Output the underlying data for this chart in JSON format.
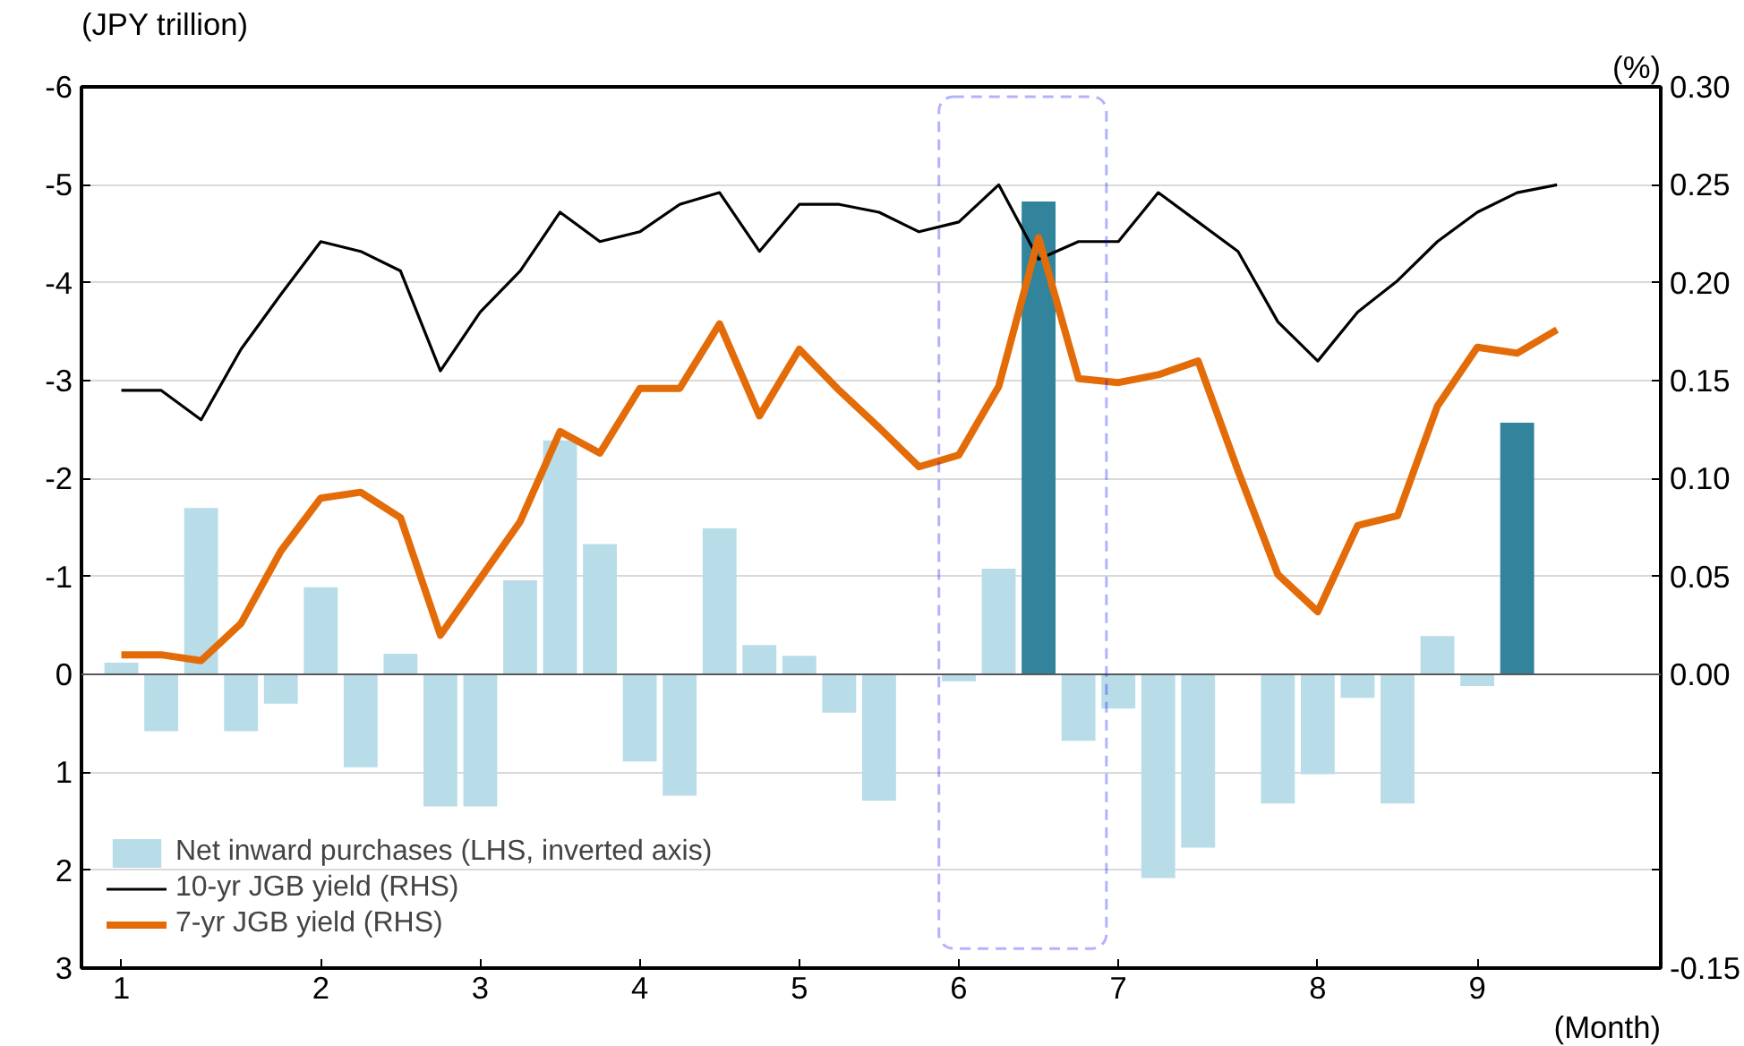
{
  "chart_data": {
    "type": "bar",
    "categories": [
      "1",
      null,
      null,
      null,
      null,
      "2",
      null,
      null,
      null,
      "3",
      null,
      null,
      null,
      "4",
      null,
      null,
      null,
      "5",
      null,
      null,
      null,
      "6",
      null,
      null,
      null,
      "7",
      null,
      null,
      null,
      null,
      "8",
      null,
      null,
      null,
      "9",
      null,
      null
    ],
    "xlabel": "(Month)",
    "ylabel": "(JPY trillion)",
    "y2label": "(%)",
    "ylim": [
      3,
      -6
    ],
    "yticks": [
      -6,
      -5,
      -4,
      -3,
      -2,
      -1,
      0,
      1,
      2,
      3
    ],
    "y2lim": [
      -0.15,
      0.3
    ],
    "y2ticks": [
      {
        "value": 0.3,
        "label": "0.30"
      },
      {
        "value": 0.25,
        "label": "0.25"
      },
      {
        "value": 0.2,
        "label": "0.20"
      },
      {
        "value": 0.15,
        "label": "0.15"
      },
      {
        "value": 0.1,
        "label": "0.10"
      },
      {
        "value": 0.05,
        "label": "0.05"
      },
      {
        "value": 0,
        "label": "0.00"
      },
      {
        "value": -0.05,
        "label": null
      },
      {
        "value": -0.1,
        "label": null
      },
      {
        "value": -0.15,
        "label": "-0.15"
      }
    ],
    "grid": "y",
    "legend": "bottom left",
    "series": [
      {
        "name": "Net inward purchases (LHS, inverted axis)",
        "color": "#b8dde8",
        "colors": [
          null,
          null,
          null,
          null,
          null,
          null,
          null,
          null,
          null,
          null,
          null,
          null,
          null,
          null,
          null,
          null,
          null,
          null,
          null,
          null,
          null,
          null,
          null,
          "#31849b",
          null,
          null,
          null,
          null,
          null,
          null,
          null,
          null,
          null,
          null,
          null,
          "#31849b",
          null
        ],
        "values": [
          -0.12,
          0.58,
          -1.7,
          0.58,
          0.3,
          -0.89,
          0.95,
          -0.21,
          1.35,
          1.35,
          -0.96,
          -2.39,
          -1.33,
          0.89,
          1.24,
          -1.49,
          -0.3,
          -0.19,
          0.39,
          1.29,
          null,
          0.07,
          -1.08,
          -4.83,
          0.68,
          0.35,
          2.08,
          1.77,
          null,
          1.32,
          1.02,
          0.24,
          1.32,
          -0.39,
          0.12,
          -2.57,
          null
        ]
      },
      {
        "name": "10-yr JGB yield (RHS)",
        "type": "line",
        "axis": "y2",
        "color": "#000000",
        "values": [
          0.145,
          0.145,
          0.13,
          0.166,
          0.194,
          0.221,
          0.216,
          0.206,
          0.155,
          0.185,
          0.206,
          0.236,
          0.221,
          0.226,
          0.24,
          0.246,
          0.216,
          0.24,
          0.24,
          0.236,
          0.226,
          0.231,
          0.25,
          0.212,
          0.221,
          0.221,
          0.246,
          0.231,
          0.216,
          0.18,
          0.16,
          0.185,
          0.201,
          0.221,
          0.236,
          0.246,
          0.25
        ]
      },
      {
        "name": "7-yr JGB yield (RHS)",
        "type": "line",
        "axis": "y2",
        "color": "#e36c09",
        "values": [
          0.01,
          0.01,
          0.007,
          0.026,
          0.063,
          0.09,
          0.093,
          0.08,
          0.02,
          0.049,
          0.078,
          0.124,
          0.113,
          0.146,
          0.146,
          0.179,
          0.132,
          0.166,
          0.145,
          0.126,
          0.106,
          0.112,
          0.147,
          0.223,
          0.151,
          0.149,
          0.153,
          0.16,
          0.104,
          0.051,
          0.032,
          0.076,
          0.081,
          0.137,
          0.167,
          0.164,
          0.176
        ]
      }
    ]
  }
}
